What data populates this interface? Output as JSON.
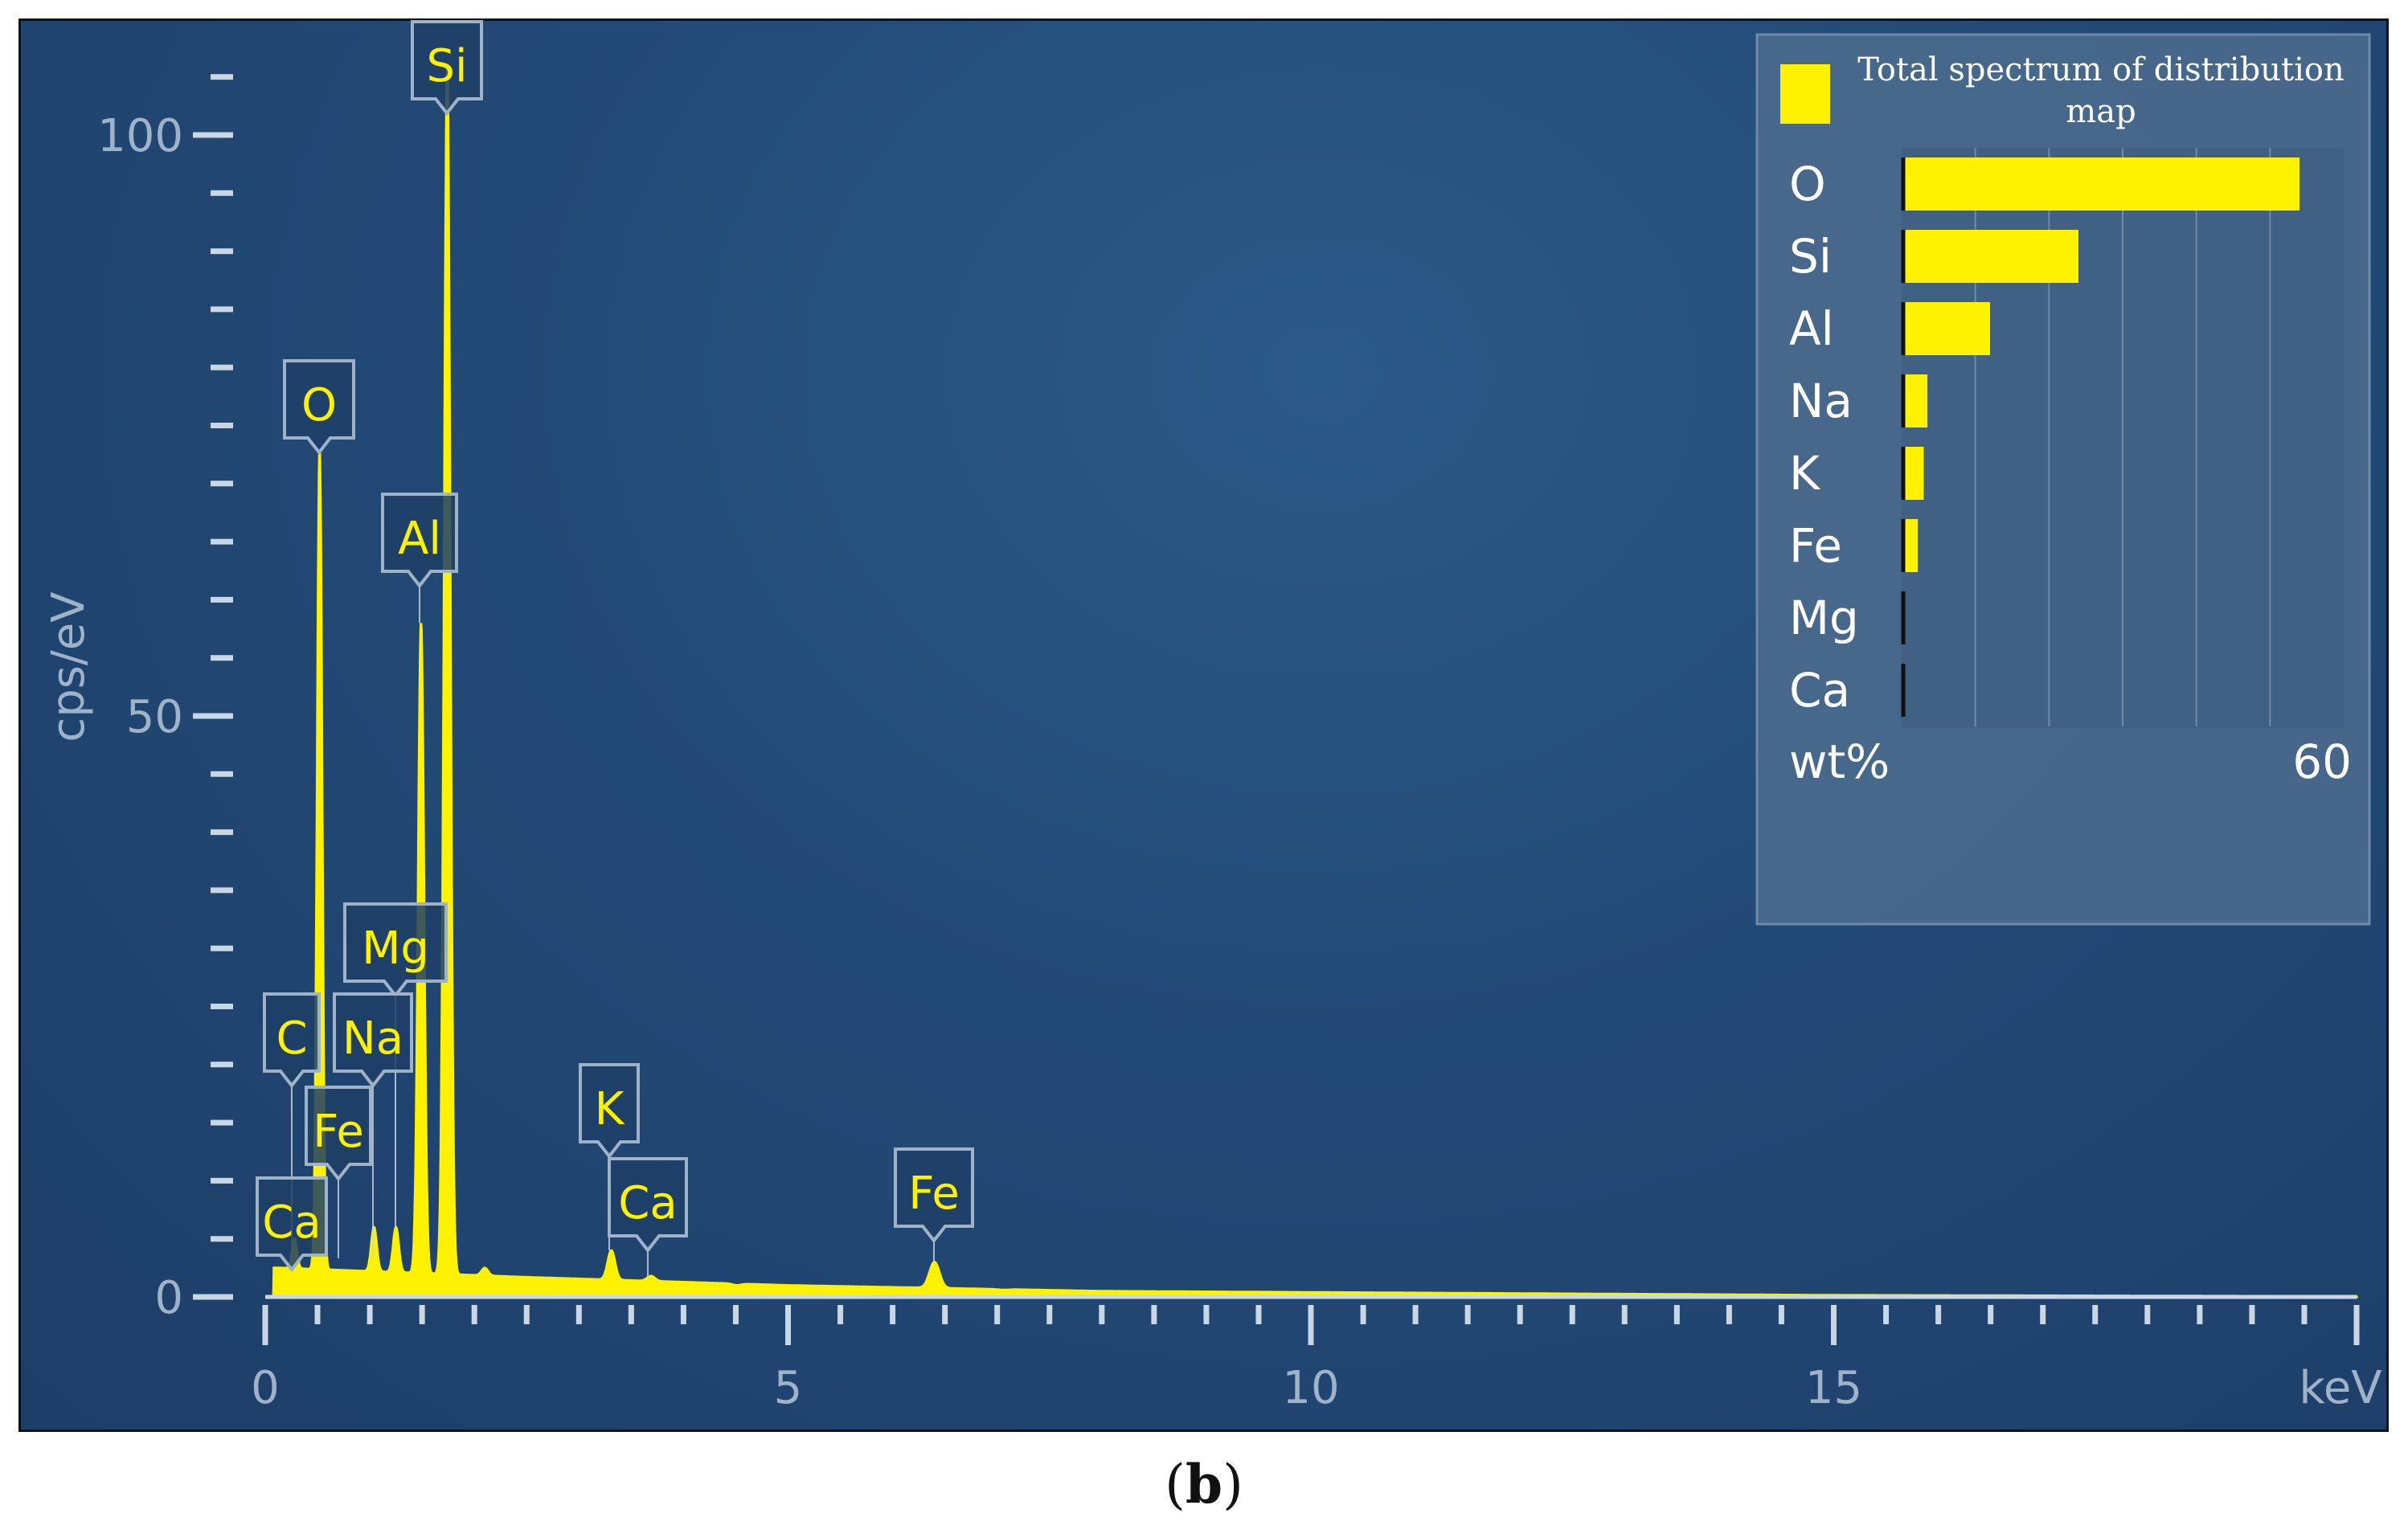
{
  "caption": {
    "open": "(",
    "letter": "b",
    "close": ")"
  },
  "colors": {
    "spectrum": "#fff200",
    "axis": "#c9d6e3",
    "axis_text": "#9fb3c8",
    "background": "#234b78",
    "legend_bg": "#4a6a8c"
  },
  "chart_data": [
    {
      "type": "line",
      "title": "",
      "xlabel": "keV",
      "ylabel": "cps/eV",
      "xlim": [
        0,
        20
      ],
      "ylim": [
        0,
        110
      ],
      "x_ticks": [
        0,
        5,
        10,
        15
      ],
      "x_tick_labels": [
        "0",
        "5",
        "10",
        "15"
      ],
      "y_ticks": [
        0,
        50,
        100
      ],
      "y_tick_labels": [
        "0",
        "50",
        "100"
      ],
      "grid": false,
      "series": [
        {
          "peaks_keV_cps": [
            [
              0.28,
              5
            ],
            [
              0.52,
              73
            ],
            [
              1.04,
              6
            ],
            [
              1.25,
              6
            ],
            [
              1.49,
              58
            ],
            [
              1.74,
              106
            ],
            [
              2.1,
              2.5
            ],
            [
              3.31,
              4
            ],
            [
              3.69,
              1.8
            ],
            [
              4.51,
              1.0
            ],
            [
              6.4,
              3.0
            ],
            [
              7.06,
              0.6
            ]
          ],
          "background_keV_cps": [
            [
              0.15,
              2.5
            ],
            [
              2.5,
              1.7
            ],
            [
              5,
              1.0
            ],
            [
              8,
              0.5
            ],
            [
              12,
              0.3
            ],
            [
              15,
              0.15
            ],
            [
              20,
              0.05
            ]
          ]
        }
      ],
      "peak_labels": [
        {
          "label": "Si",
          "x": 1.74
        },
        {
          "label": "O",
          "x": 0.52
        },
        {
          "label": "Al",
          "x": 1.49
        },
        {
          "label": "Mg",
          "x": 1.25
        },
        {
          "label": "C",
          "x": 0.28
        },
        {
          "label": "Na",
          "x": 1.04
        },
        {
          "label": "Fe",
          "x": 0.7
        },
        {
          "label": "Ca",
          "x": 0.34
        },
        {
          "label": "K",
          "x": 3.31
        },
        {
          "label": "Ca",
          "x": 3.69
        },
        {
          "label": "Fe",
          "x": 6.4
        }
      ]
    },
    {
      "type": "bar",
      "orientation": "horizontal",
      "title": "Total spectrum of distribution map",
      "xlabel": "wt%",
      "xlim": [
        0,
        60
      ],
      "x_tick_labels": [
        "60"
      ],
      "categories": [
        "O",
        "Si",
        "Al",
        "Na",
        "K",
        "Fe",
        "Mg",
        "Ca"
      ],
      "values": [
        54,
        24,
        12,
        3.5,
        3.0,
        2.2,
        0.4,
        0.4
      ],
      "legend_position": "top-right"
    }
  ]
}
